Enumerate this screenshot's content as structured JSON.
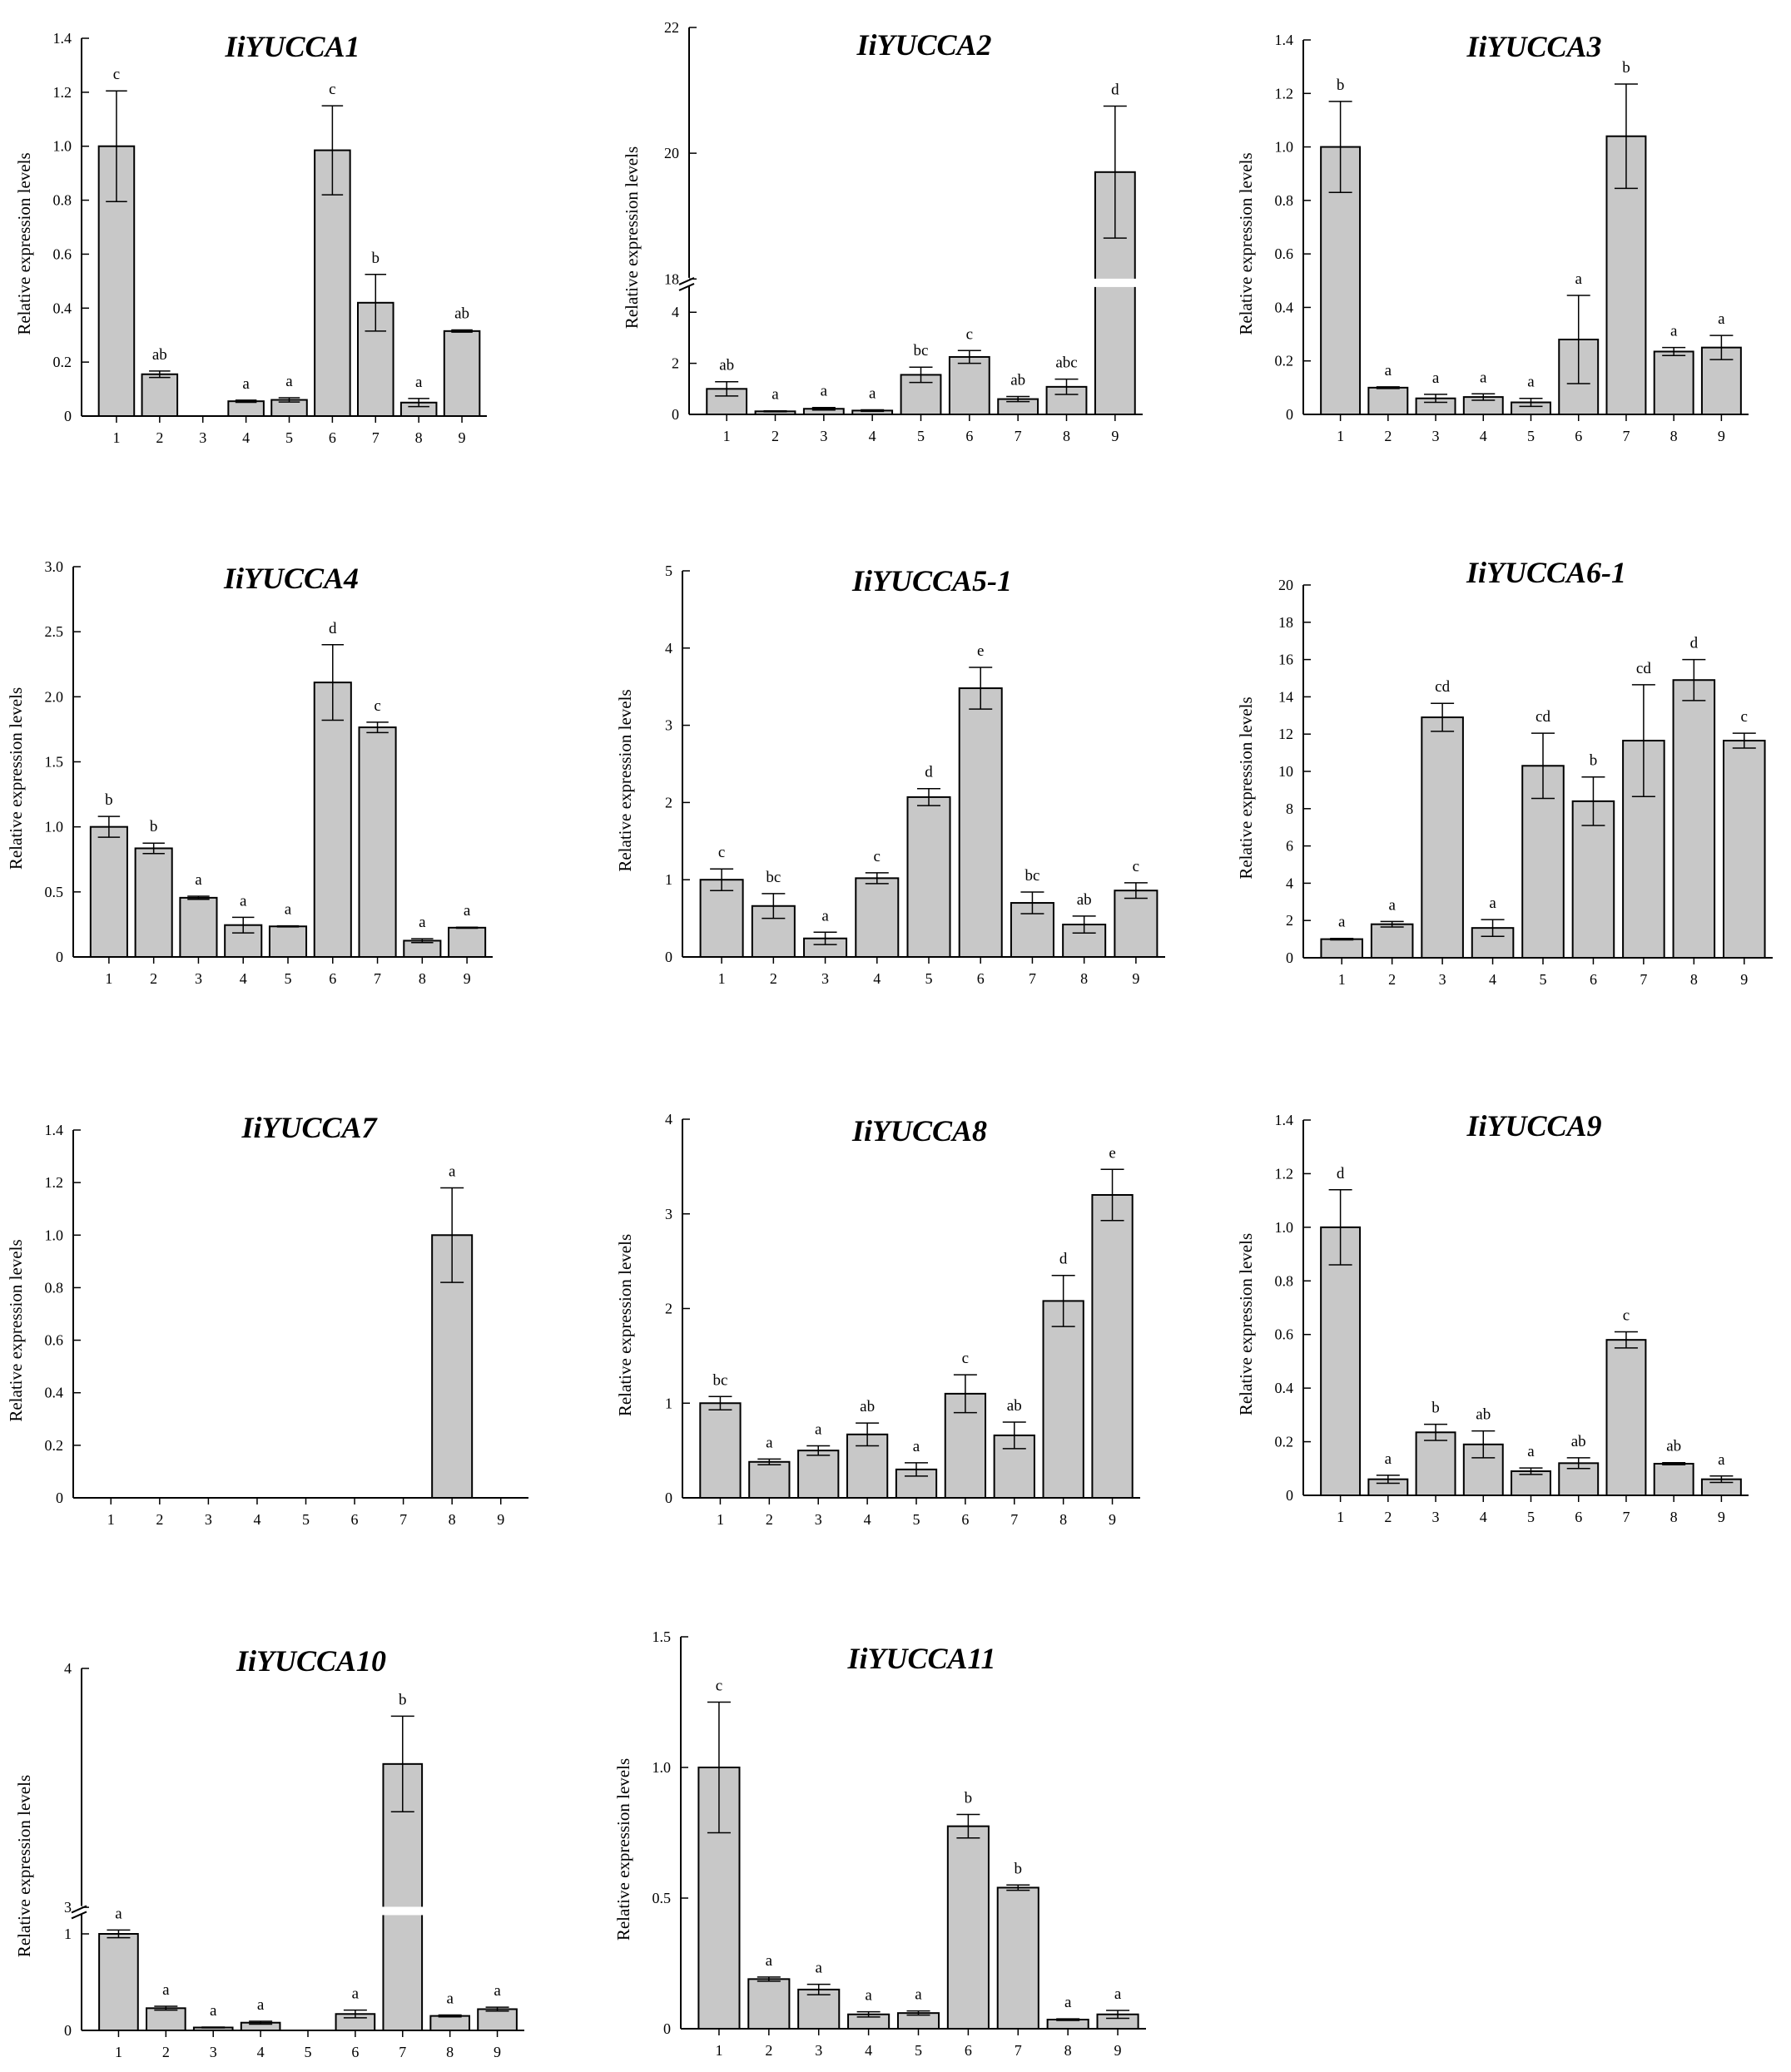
{
  "figure": {
    "ylabel": "Relative expression levels",
    "bar_color": "#c8c8c8",
    "edge_color": "#000000",
    "break_color": "#ffffff"
  },
  "chart_data": [
    {
      "type": "bar",
      "title": "IiYUCCA1",
      "categories": [
        "1",
        "2",
        "3",
        "4",
        "5",
        "6",
        "7",
        "8",
        "9"
      ],
      "values": [
        1.0,
        0.155,
        0,
        0.055,
        0.06,
        0.985,
        0.42,
        0.05,
        0.315
      ],
      "errors": [
        0.205,
        0.012,
        0,
        0.004,
        0.008,
        0.165,
        0.105,
        0.015,
        0.004
      ],
      "significance": [
        "c",
        "ab",
        "",
        "a",
        "a",
        "c",
        "b",
        "a",
        "ab"
      ],
      "ylabel": "Relative expression levels",
      "ylim": [
        0,
        1.4
      ],
      "yticks": [
        "0",
        "0.2",
        "0.4",
        "0.6",
        "0.8",
        "1.0",
        "1.2",
        "1.4"
      ],
      "ytick_values": [
        0,
        0.2,
        0.4,
        0.6,
        0.8,
        1.0,
        1.2,
        1.4
      ]
    },
    {
      "type": "bar",
      "title": "IiYUCCA2",
      "categories": [
        "1",
        "2",
        "3",
        "4",
        "5",
        "6",
        "7",
        "8",
        "9"
      ],
      "values": [
        1.0,
        0.12,
        0.22,
        0.15,
        1.55,
        2.25,
        0.6,
        1.08,
        19.7
      ],
      "errors": [
        0.28,
        0.02,
        0.05,
        0.03,
        0.3,
        0.25,
        0.1,
        0.3,
        1.05
      ],
      "significance": [
        "ab",
        "a",
        "a",
        "a",
        "bc",
        "c",
        "ab",
        "abc",
        "d"
      ],
      "ylabel": "Relative expression levels",
      "ylim": [
        0,
        22
      ],
      "axis_break": [
        5,
        18
      ],
      "yticks": [
        "0",
        "2",
        "4",
        "18",
        "20",
        "22"
      ],
      "ytick_values": [
        0,
        2,
        4,
        18,
        20,
        22
      ]
    },
    {
      "type": "bar",
      "title": "IiYUCCA3",
      "categories": [
        "1",
        "2",
        "3",
        "4",
        "5",
        "6",
        "7",
        "8",
        "9"
      ],
      "values": [
        1.0,
        0.1,
        0.06,
        0.065,
        0.045,
        0.28,
        1.04,
        0.235,
        0.25
      ],
      "errors": [
        0.17,
        0.003,
        0.015,
        0.012,
        0.015,
        0.165,
        0.195,
        0.015,
        0.045
      ],
      "significance": [
        "b",
        "a",
        "a",
        "a",
        "a",
        "a",
        "b",
        "a",
        "a"
      ],
      "ylabel": "Relative expression levels",
      "ylim": [
        0,
        1.4
      ],
      "yticks": [
        "0",
        "0.2",
        "0.4",
        "0.6",
        "0.8",
        "1.0",
        "1.2",
        "1.4"
      ],
      "ytick_values": [
        0,
        0.2,
        0.4,
        0.6,
        0.8,
        1.0,
        1.2,
        1.4
      ]
    },
    {
      "type": "bar",
      "title": "IiYUCCA4",
      "categories": [
        "1",
        "2",
        "3",
        "4",
        "5",
        "6",
        "7",
        "8",
        "9"
      ],
      "values": [
        1.0,
        0.835,
        0.455,
        0.245,
        0.235,
        2.11,
        1.765,
        0.125,
        0.225
      ],
      "errors": [
        0.08,
        0.04,
        0.012,
        0.06,
        0.004,
        0.29,
        0.04,
        0.015,
        0.004
      ],
      "significance": [
        "b",
        "b",
        "a",
        "a",
        "a",
        "d",
        "c",
        "a",
        "a"
      ],
      "ylabel": "Relative expression levels",
      "ylim": [
        0,
        3.0
      ],
      "yticks": [
        "0",
        "0.5",
        "1.0",
        "1.5",
        "2.0",
        "2.5",
        "3.0"
      ],
      "ytick_values": [
        0,
        0.5,
        1.0,
        1.5,
        2.0,
        2.5,
        3.0
      ]
    },
    {
      "type": "bar",
      "title": "IiYUCCA5-1",
      "categories": [
        "1",
        "2",
        "3",
        "4",
        "5",
        "6",
        "7",
        "8",
        "9"
      ],
      "values": [
        1.0,
        0.66,
        0.24,
        1.02,
        2.07,
        3.48,
        0.7,
        0.42,
        0.86
      ],
      "errors": [
        0.14,
        0.16,
        0.08,
        0.07,
        0.11,
        0.27,
        0.14,
        0.11,
        0.1
      ],
      "significance": [
        "c",
        "bc",
        "a",
        "c",
        "d",
        "e",
        "bc",
        "ab",
        "c"
      ],
      "ylabel": "Relative expression levels",
      "ylim": [
        0,
        5
      ],
      "yticks": [
        "0",
        "1",
        "2",
        "3",
        "4",
        "5"
      ],
      "ytick_values": [
        0,
        1,
        2,
        3,
        4,
        5
      ]
    },
    {
      "type": "bar",
      "title": "IiYUCCA6-1",
      "categories": [
        "1",
        "2",
        "3",
        "4",
        "5",
        "6",
        "7",
        "8",
        "9"
      ],
      "values": [
        1.0,
        1.8,
        12.9,
        1.6,
        10.3,
        8.4,
        11.65,
        14.9,
        11.65
      ],
      "errors": [
        0.04,
        0.15,
        0.75,
        0.45,
        1.75,
        1.3,
        3.0,
        1.1,
        0.4
      ],
      "significance": [
        "a",
        "a",
        "cd",
        "a",
        "cd",
        "b",
        "cd",
        "d",
        "c"
      ],
      "ylabel": "Relative expression levels",
      "ylim": [
        0,
        20
      ],
      "yticks": [
        "0",
        "2",
        "4",
        "6",
        "8",
        "10",
        "12",
        "14",
        "16",
        "18",
        "20"
      ],
      "ytick_values": [
        0,
        2,
        4,
        6,
        8,
        10,
        12,
        14,
        16,
        18,
        20
      ]
    },
    {
      "type": "bar",
      "title": "IiYUCCA7",
      "categories": [
        "1",
        "2",
        "3",
        "4",
        "5",
        "6",
        "7",
        "8",
        "9"
      ],
      "values": [
        0,
        0,
        0,
        0,
        0,
        0,
        0,
        1.0,
        0
      ],
      "errors": [
        0,
        0,
        0,
        0,
        0,
        0,
        0,
        0.18,
        0
      ],
      "significance": [
        "",
        "",
        "",
        "",
        "",
        "",
        "",
        "a",
        ""
      ],
      "ylabel": "Relative expression levels",
      "ylim": [
        0,
        1.4
      ],
      "yticks": [
        "0",
        "0.2",
        "0.4",
        "0.6",
        "0.8",
        "1.0",
        "1.2",
        "1.4"
      ],
      "ytick_values": [
        0,
        0.2,
        0.4,
        0.6,
        0.8,
        1.0,
        1.2,
        1.4
      ]
    },
    {
      "type": "bar",
      "title": "IiYUCCA8",
      "categories": [
        "1",
        "2",
        "3",
        "4",
        "5",
        "6",
        "7",
        "8",
        "9"
      ],
      "values": [
        1.0,
        0.38,
        0.5,
        0.67,
        0.3,
        1.1,
        0.66,
        2.08,
        3.2
      ],
      "errors": [
        0.07,
        0.03,
        0.05,
        0.12,
        0.07,
        0.2,
        0.14,
        0.27,
        0.27
      ],
      "significance": [
        "bc",
        "a",
        "a",
        "ab",
        "a",
        "c",
        "ab",
        "d",
        "e"
      ],
      "ylabel": "Relative expression levels",
      "ylim": [
        0,
        4
      ],
      "yticks": [
        "0",
        "1",
        "2",
        "3",
        "4"
      ],
      "ytick_values": [
        0,
        1,
        2,
        3,
        4
      ]
    },
    {
      "type": "bar",
      "title": "IiYUCCA9",
      "categories": [
        "1",
        "2",
        "3",
        "4",
        "5",
        "6",
        "7",
        "8",
        "9"
      ],
      "values": [
        1.0,
        0.06,
        0.235,
        0.19,
        0.09,
        0.12,
        0.58,
        0.118,
        0.06
      ],
      "errors": [
        0.14,
        0.015,
        0.03,
        0.05,
        0.012,
        0.02,
        0.03,
        0.004,
        0.012
      ],
      "significance": [
        "d",
        "a",
        "b",
        "ab",
        "a",
        "ab",
        "c",
        "ab",
        "a"
      ],
      "ylabel": "Relative expression levels",
      "ylim": [
        0,
        1.4
      ],
      "yticks": [
        "0",
        "0.2",
        "0.4",
        "0.6",
        "0.8",
        "1.0",
        "1.2",
        "1.4"
      ],
      "ytick_values": [
        0,
        0.2,
        0.4,
        0.6,
        0.8,
        1.0,
        1.2,
        1.4
      ]
    },
    {
      "type": "bar",
      "title": "IiYUCCA10",
      "categories": [
        "1",
        "2",
        "3",
        "4",
        "5",
        "6",
        "7",
        "8",
        "9"
      ],
      "values": [
        1.0,
        0.23,
        0.03,
        0.08,
        0,
        0.17,
        3.6,
        0.15,
        0.22
      ],
      "errors": [
        0.04,
        0.02,
        0.004,
        0.015,
        0,
        0.04,
        0.2,
        0.01,
        0.02
      ],
      "significance": [
        "a",
        "a",
        "a",
        "a",
        "",
        "a",
        "b",
        "a",
        "a"
      ],
      "ylabel": "Relative expression levels",
      "ylim": [
        0,
        4
      ],
      "axis_break": [
        1.2,
        3
      ],
      "yticks": [
        "0",
        "1",
        "3",
        "4"
      ],
      "ytick_values": [
        0,
        1,
        3,
        4
      ]
    },
    {
      "type": "bar",
      "title": "IiYUCCA11",
      "categories": [
        "1",
        "2",
        "3",
        "4",
        "5",
        "6",
        "7",
        "8",
        "9"
      ],
      "values": [
        1.0,
        0.19,
        0.15,
        0.055,
        0.06,
        0.775,
        0.54,
        0.035,
        0.055
      ],
      "errors": [
        0.25,
        0.008,
        0.02,
        0.01,
        0.008,
        0.045,
        0.01,
        0.003,
        0.015
      ],
      "significance": [
        "c",
        "a",
        "a",
        "a",
        "a",
        "b",
        "b",
        "a",
        "a"
      ],
      "ylabel": "Relative expression levels",
      "ylim": [
        0,
        1.5
      ],
      "yticks": [
        "0",
        "0.5",
        "1.0",
        "1.5"
      ],
      "ytick_values": [
        0,
        0.5,
        1.0,
        1.5
      ]
    }
  ]
}
